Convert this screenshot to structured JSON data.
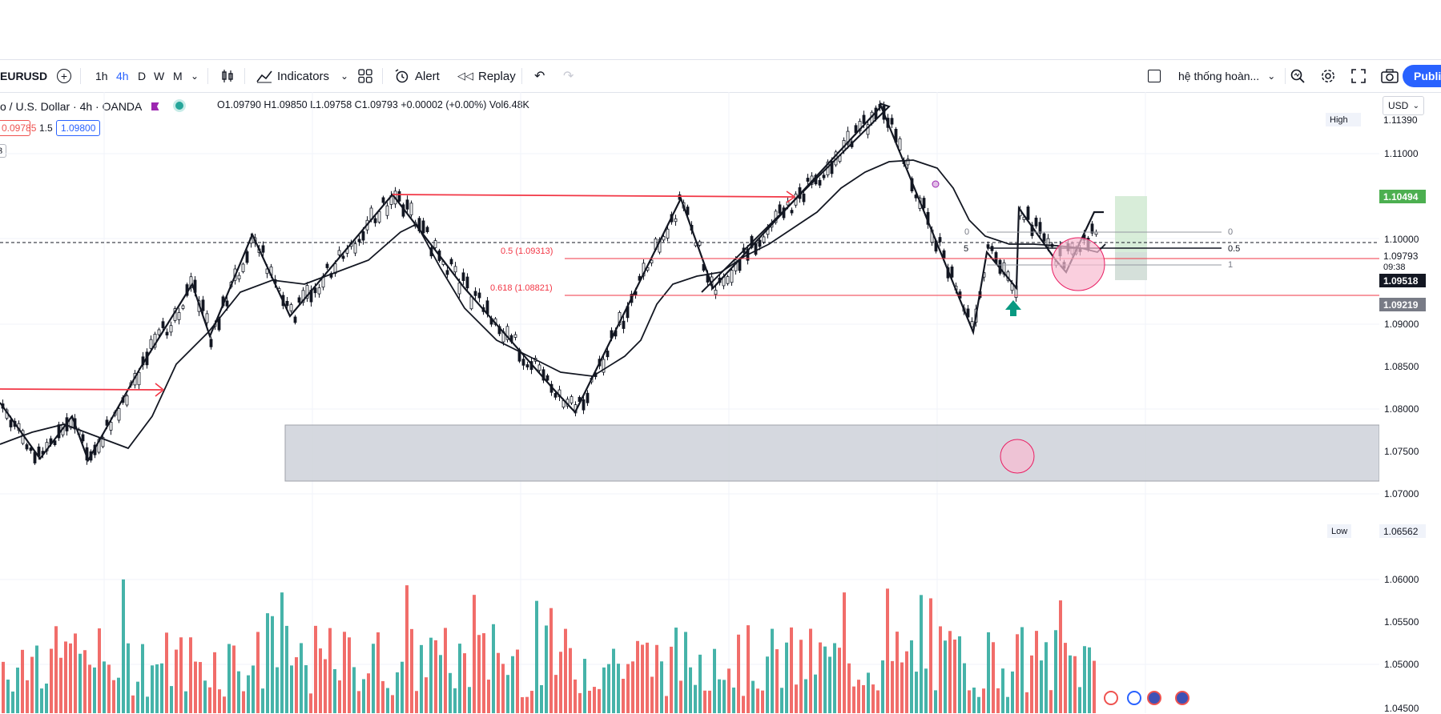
{
  "toolbar": {
    "symbol": "EURUSD",
    "timeframes": [
      "1h",
      "4h",
      "D",
      "W",
      "M"
    ],
    "indicators_label": "Indicators",
    "alert_label": "Alert",
    "replay_label": "Replay",
    "layout_name": "hệ thống hoàn...",
    "publish_label": "Publi"
  },
  "legend": {
    "title": "o / U.S. Dollar · 4h · OANDA",
    "ohlc": "O1.09790 H1.09850 L1.09758 C1.09793 +0.00002 (+0.00%) Vol6.48K",
    "bid": "0.09785",
    "spread": "1.5",
    "ask": "1.09800",
    "small": "3"
  },
  "axis": {
    "currency": "USD",
    "labels": [
      "1.11000",
      "1.10000",
      "1.09000",
      "1.08500",
      "1.08000",
      "1.07500",
      "1.07000",
      "1.06000",
      "1.05500",
      "1.05000",
      "1.04500"
    ],
    "high_label": "High",
    "high_value": "1.11390",
    "low_label": "Low",
    "low_value": "1.06562",
    "tag_green": "1.10494",
    "tag_current": "1.09793",
    "tag_countdown": "09:38",
    "tag_dark": "1.09518",
    "tag_grey": "1.09219"
  },
  "annotations": {
    "fib_05": "0.5 (1.09313)",
    "fib_0618": "0.618 (1.08821)",
    "fib_small_0": "0",
    "fib_small_05": "0.5",
    "fib_small_1": "1",
    "fib_left_0": "0",
    "fib_left_5": "5"
  },
  "colors": {
    "up": "#26a69a",
    "down": "#ef5350",
    "accent": "#2962ff",
    "green_tag": "#4caf50",
    "dark_tag": "#131722",
    "grey_tag": "#787b86"
  }
}
